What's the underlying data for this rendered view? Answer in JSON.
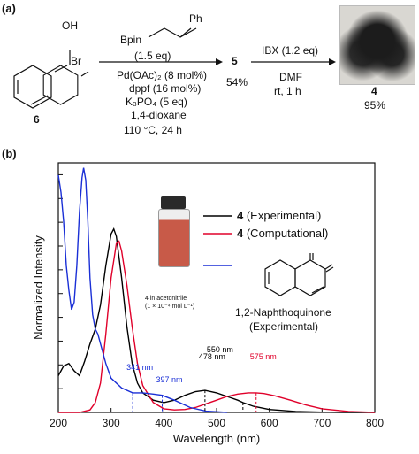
{
  "panel_a": {
    "label": "(a)",
    "reagent_top": "Bpin",
    "reagent_ph": "Ph",
    "step1_eq": "(1.5 eq)",
    "step1_conditions": [
      "Pd(OAc)₂ (8 mol%)",
      "dppf (16 mol%)",
      "K₃PO₄ (5 eq)",
      "1,4-dioxane",
      "110 °C, 24 h"
    ],
    "compound_start": "6",
    "start_oh": "OH",
    "start_br": "Br",
    "compound_mid": "5",
    "yield_mid": "54%",
    "step2_reagent": "IBX (1.2 eq)",
    "step2_conditions": [
      "DMF",
      "rt, 1 h"
    ],
    "compound_end": "4",
    "yield_end": "95%"
  },
  "panel_b": {
    "label": "(b)",
    "vial_caption_line1": "4 in acetonitrile",
    "vial_caption_line2": "(1 × 10⁻⁴ mol L⁻¹)",
    "quinone_name_line1": "1,2-Naphthoquinone",
    "quinone_name_line2": "(Experimental)",
    "colors": {
      "experimental": "#000000",
      "computational": "#e0002a",
      "quinone": "#1a2fd6"
    }
  },
  "chart_data": {
    "type": "line",
    "xlabel": "Wavelength (nm)",
    "ylabel": "Normalized Intensity",
    "xlim": [
      200,
      800
    ],
    "xticks": [
      200,
      300,
      400,
      500,
      600,
      700,
      800
    ],
    "ylim": [
      0,
      1.0
    ],
    "grid": false,
    "legend_placement": "top-right",
    "series": [
      {
        "name": "4 (Experimental)",
        "name_bold": "4",
        "name_rest": " (Experimental)",
        "color": "#000000",
        "x": [
          200,
          210,
          220,
          230,
          240,
          250,
          260,
          270,
          280,
          290,
          300,
          305,
          310,
          320,
          330,
          340,
          350,
          360,
          380,
          400,
          420,
          440,
          460,
          478,
          500,
          520,
          540,
          550,
          570,
          600,
          650,
          700,
          750,
          800
        ],
        "y": [
          0.15,
          0.19,
          0.2,
          0.17,
          0.15,
          0.21,
          0.28,
          0.34,
          0.44,
          0.6,
          0.73,
          0.75,
          0.72,
          0.55,
          0.35,
          0.2,
          0.12,
          0.08,
          0.05,
          0.04,
          0.05,
          0.07,
          0.085,
          0.09,
          0.08,
          0.065,
          0.05,
          0.04,
          0.025,
          0.012,
          0.004,
          0.001,
          0.0,
          0.0
        ]
      },
      {
        "name": "4 (Computational)",
        "name_bold": "4",
        "name_rest": " (Computational)",
        "color": "#e0002a",
        "x": [
          200,
          240,
          260,
          270,
          280,
          290,
          300,
          310,
          315,
          320,
          330,
          340,
          350,
          360,
          380,
          400,
          420,
          440,
          460,
          480,
          500,
          520,
          540,
          560,
          575,
          590,
          610,
          640,
          670,
          700,
          750,
          800
        ],
        "y": [
          0.0,
          0.0,
          0.01,
          0.04,
          0.12,
          0.32,
          0.55,
          0.69,
          0.7,
          0.66,
          0.52,
          0.35,
          0.2,
          0.11,
          0.04,
          0.015,
          0.01,
          0.012,
          0.02,
          0.035,
          0.05,
          0.065,
          0.075,
          0.08,
          0.08,
          0.077,
          0.068,
          0.05,
          0.03,
          0.015,
          0.004,
          0.0
        ]
      },
      {
        "name": "1,2-Naphthoquinone (Experimental)",
        "color": "#1a2fd6",
        "x": [
          200,
          205,
          210,
          215,
          220,
          225,
          230,
          235,
          240,
          245,
          248,
          252,
          256,
          260,
          265,
          270,
          275,
          280,
          290,
          300,
          320,
          341,
          360,
          380,
          397,
          420,
          450,
          480,
          520
        ],
        "y": [
          0.97,
          0.9,
          0.78,
          0.6,
          0.5,
          0.42,
          0.45,
          0.6,
          0.82,
          0.96,
          1.0,
          0.95,
          0.78,
          0.55,
          0.4,
          0.34,
          0.32,
          0.28,
          0.2,
          0.14,
          0.1,
          0.08,
          0.08,
          0.075,
          0.07,
          0.05,
          0.02,
          0.005,
          0.0
        ]
      }
    ],
    "annotations": [
      {
        "text": "341 nm",
        "x": 341,
        "y": 0.08,
        "color": "#1a2fd6"
      },
      {
        "text": "397 nm",
        "x": 397,
        "y": 0.07,
        "color": "#1a2fd6"
      },
      {
        "text": "478 nm",
        "x": 478,
        "y": 0.09,
        "color": "#000000"
      },
      {
        "text": "550 nm",
        "x": 550,
        "y": 0.04,
        "color": "#000000"
      },
      {
        "text": "575 nm",
        "x": 575,
        "y": 0.08,
        "color": "#e0002a"
      }
    ]
  }
}
